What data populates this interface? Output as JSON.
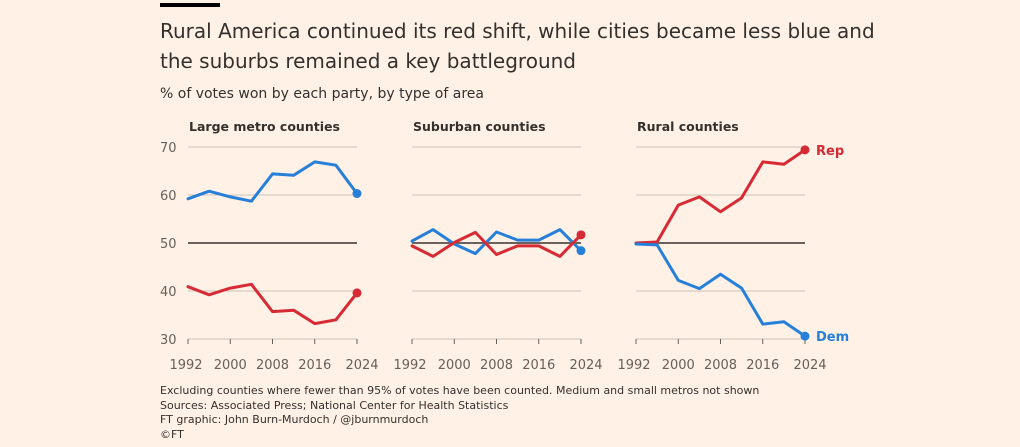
{
  "title": "Rural America continued its red shift, while cities became less blue and the suburbs remained a key battleground",
  "subtitle": "% of votes won by each party, by type of area",
  "colors": {
    "rep": "#d62a35",
    "dem": "#2680d9",
    "reference": "#6b625d",
    "grid": "#ccc1b7",
    "background": "#fff1e5"
  },
  "chart_data": [
    {
      "type": "line",
      "title": "Large metro counties",
      "x": [
        1992,
        1996,
        2000,
        2004,
        2008,
        2012,
        2016,
        2020,
        2024
      ],
      "xticks": [
        "1992",
        "2000",
        "2008",
        "2016",
        "2024"
      ],
      "yticks": [
        "70",
        "60",
        "50",
        "40",
        "30"
      ],
      "ylim": [
        30,
        70
      ],
      "reference_line": 50,
      "series": [
        {
          "party": "dem",
          "values": [
            59.2,
            60.8,
            59.6,
            58.7,
            64.4,
            64.1,
            66.9,
            66.2,
            60.3
          ]
        },
        {
          "party": "rep",
          "values": [
            40.9,
            39.2,
            40.6,
            41.4,
            35.7,
            36.0,
            33.2,
            34.0,
            39.6
          ]
        }
      ]
    },
    {
      "type": "line",
      "title": "Suburban counties",
      "x": [
        1992,
        1996,
        2000,
        2004,
        2008,
        2012,
        2016,
        2020,
        2024
      ],
      "xticks": [
        "1992",
        "2000",
        "2008",
        "2016",
        "2024"
      ],
      "ylim": [
        30,
        70
      ],
      "reference_line": 50,
      "series": [
        {
          "party": "dem",
          "values": [
            50.4,
            52.8,
            49.8,
            47.8,
            52.3,
            50.6,
            50.6,
            52.8,
            48.4
          ]
        },
        {
          "party": "rep",
          "values": [
            49.4,
            47.2,
            50.1,
            52.2,
            47.6,
            49.4,
            49.4,
            47.2,
            51.7
          ]
        }
      ]
    },
    {
      "type": "line",
      "title": "Rural counties",
      "x": [
        1992,
        1996,
        2000,
        2004,
        2008,
        2012,
        2016,
        2020,
        2024
      ],
      "xticks": [
        "1992",
        "2000",
        "2008",
        "2016",
        "2024"
      ],
      "ylim": [
        30,
        70
      ],
      "reference_line": 50,
      "series": [
        {
          "party": "rep",
          "name": "Rep",
          "values": [
            50.0,
            50.2,
            57.9,
            59.6,
            56.5,
            59.4,
            66.9,
            66.4,
            69.4
          ]
        },
        {
          "party": "dem",
          "name": "Dem",
          "values": [
            49.8,
            49.6,
            42.2,
            40.5,
            43.5,
            40.6,
            33.1,
            33.6,
            30.6
          ]
        }
      ]
    }
  ],
  "notes": [
    "Excluding counties where fewer than 95% of votes have been counted. Medium and small metros not shown",
    "Sources: Associated Press; National Center for Health Statistics",
    "FT graphic: John Burn-Murdoch / @jburnmurdoch",
    "©FT"
  ]
}
